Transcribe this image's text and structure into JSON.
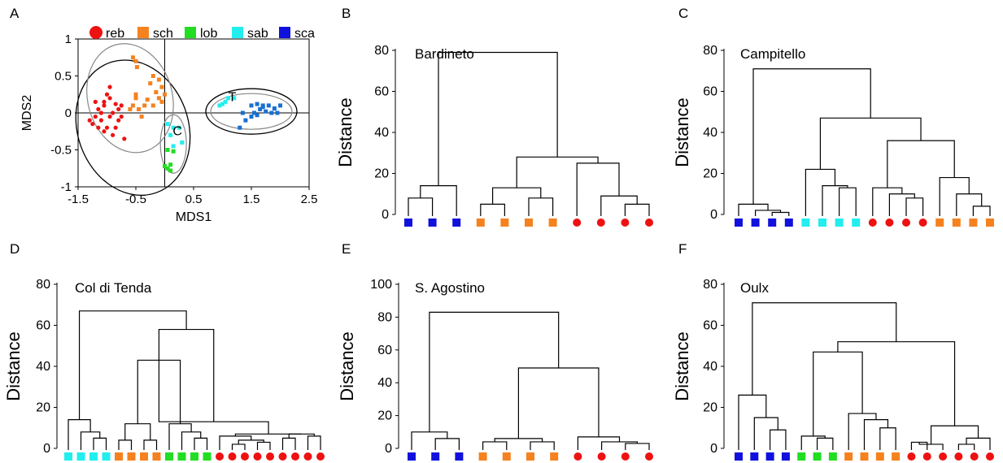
{
  "colors": {
    "reb": "#ee1111",
    "sch": "#f5821f",
    "lob": "#22dd22",
    "sab": "#22eeee",
    "sca": "#1111dd",
    "sca_scatter": "#1a6fd1"
  },
  "chart_data": [
    {
      "panel": "A",
      "type": "scatter",
      "xlabel": "MDS1",
      "ylabel": "MDS2",
      "xlim": [
        -1.5,
        2.5
      ],
      "ylim": [
        -1,
        1
      ],
      "xticks": [
        "-1.5",
        "-0.5",
        "0.5",
        "1.5",
        "2.5"
      ],
      "yticks": [
        "1",
        "0.5",
        "0",
        "-0.5",
        "-1"
      ],
      "legend": [
        {
          "key": "reb",
          "label": "reb",
          "shape": "circle"
        },
        {
          "key": "sch",
          "label": "sch",
          "shape": "square"
        },
        {
          "key": "lob",
          "label": "lob",
          "shape": "square"
        },
        {
          "key": "sab",
          "label": "sab",
          "shape": "square"
        },
        {
          "key": "sca",
          "label": "sca",
          "shape": "square"
        }
      ],
      "annotations": [
        {
          "text": "T",
          "x": 1.17,
          "y": 0.16
        },
        {
          "text": "C",
          "x": 0.22,
          "y": -0.3
        }
      ],
      "series": [
        {
          "key": "reb",
          "shape": "circle",
          "points": [
            [
              -1.15,
              0.05
            ],
            [
              -1.05,
              0.1
            ],
            [
              -1.2,
              -0.05
            ],
            [
              -0.95,
              0.2
            ],
            [
              -1.1,
              -0.1
            ],
            [
              -0.9,
              0.0
            ],
            [
              -1.0,
              -0.2
            ],
            [
              -0.8,
              -0.1
            ],
            [
              -1.25,
              -0.15
            ],
            [
              -0.95,
              0.35
            ],
            [
              -1.05,
              -0.25
            ],
            [
              -0.85,
              0.12
            ],
            [
              -1.15,
              -0.2
            ],
            [
              -0.75,
              -0.05
            ],
            [
              -1.0,
              0.25
            ],
            [
              -0.9,
              -0.3
            ],
            [
              -0.7,
              -0.35
            ],
            [
              -1.2,
              0.15
            ],
            [
              -1.1,
              0.0
            ],
            [
              -0.95,
              -0.05
            ],
            [
              -0.8,
              0.05
            ],
            [
              -1.3,
              -0.1
            ],
            [
              -0.85,
              -0.2
            ],
            [
              -1.05,
              0.15
            ],
            [
              -0.75,
              0.1
            ]
          ]
        },
        {
          "key": "sch",
          "shape": "square",
          "points": [
            [
              -0.55,
              0.75
            ],
            [
              -0.5,
              0.7
            ],
            [
              -0.48,
              0.62
            ],
            [
              -0.2,
              0.5
            ],
            [
              -0.1,
              0.45
            ],
            [
              -0.25,
              0.4
            ],
            [
              -0.05,
              0.35
            ],
            [
              -0.1,
              0.2
            ],
            [
              -0.15,
              0.28
            ],
            [
              -0.3,
              0.18
            ],
            [
              -0.5,
              0.25
            ],
            [
              -0.05,
              0.15
            ],
            [
              -0.45,
              0.05
            ],
            [
              -0.35,
              0.1
            ],
            [
              -0.55,
              0.1
            ],
            [
              -0.5,
              0.2
            ],
            [
              -0.2,
              0.1
            ],
            [
              0.0,
              0.25
            ],
            [
              -0.4,
              -0.05
            ],
            [
              -0.6,
              0.05
            ]
          ]
        },
        {
          "key": "sab",
          "shape": "square",
          "points": [
            [
              0.05,
              -0.15
            ],
            [
              0.15,
              -0.2
            ],
            [
              0.25,
              -0.2
            ],
            [
              0.1,
              -0.3
            ],
            [
              0.3,
              -0.4
            ],
            [
              0.15,
              -0.45
            ],
            [
              1.05,
              0.15
            ],
            [
              1.1,
              0.2
            ],
            [
              0.95,
              0.1
            ],
            [
              1.2,
              0.2
            ],
            [
              1.0,
              0.12
            ]
          ]
        },
        {
          "key": "lob",
          "shape": "square",
          "points": [
            [
              0.05,
              -0.5
            ],
            [
              0.1,
              -0.7
            ],
            [
              0.05,
              -0.75
            ],
            [
              0.1,
              -0.78
            ],
            [
              0.0,
              -0.72
            ],
            [
              0.15,
              -0.52
            ]
          ]
        },
        {
          "key": "sca_scatter",
          "shape": "square",
          "points": [
            [
              1.5,
              0.1
            ],
            [
              1.6,
              0.12
            ],
            [
              1.7,
              0.08
            ],
            [
              1.8,
              0.1
            ],
            [
              1.9,
              0.06
            ],
            [
              2.0,
              0.1
            ],
            [
              1.55,
              0.0
            ],
            [
              1.65,
              0.05
            ],
            [
              1.75,
              0.02
            ],
            [
              1.85,
              0.0
            ],
            [
              1.35,
              0.0
            ],
            [
              1.4,
              -0.1
            ],
            [
              1.3,
              -0.2
            ],
            [
              1.5,
              -0.05
            ],
            [
              1.95,
              0.0
            ],
            [
              1.7,
              0.1
            ],
            [
              1.6,
              -0.03
            ]
          ]
        }
      ]
    },
    {
      "panel": "B",
      "type": "dendrogram",
      "title": "Bardineto",
      "ylabel": "Distance",
      "ylim": [
        0,
        80
      ],
      "yticks": [
        "0",
        "20",
        "40",
        "60",
        "80"
      ],
      "leaves": [
        "sca",
        "sca",
        "sca",
        "sch",
        "sch",
        "sch",
        "sch",
        "reb",
        "reb",
        "reb",
        "reb"
      ],
      "merges": [
        [
          0,
          1,
          8
        ],
        [
          11,
          2,
          14
        ],
        [
          5,
          6,
          8
        ],
        [
          3,
          4,
          5
        ],
        [
          13,
          14,
          13
        ],
        [
          9,
          10,
          5
        ],
        [
          8,
          16,
          9
        ],
        [
          7,
          17,
          25
        ],
        [
          15,
          18,
          28
        ],
        [
          12,
          19,
          79
        ]
      ]
    },
    {
      "panel": "C",
      "type": "dendrogram",
      "title": "Campitello",
      "ylabel": "Distance",
      "ylim": [
        0,
        80
      ],
      "yticks": [
        "0",
        "20",
        "40",
        "60",
        "80"
      ],
      "leaves": [
        "sca",
        "sca",
        "sca",
        "sca",
        "sab",
        "sab",
        "sab",
        "sab",
        "reb",
        "reb",
        "reb",
        "reb",
        "sch",
        "sch",
        "sch",
        "sch"
      ],
      "merges": [
        [
          2,
          3,
          1
        ],
        [
          1,
          16,
          2
        ],
        [
          0,
          17,
          5
        ],
        [
          6,
          7,
          13
        ],
        [
          5,
          19,
          14
        ],
        [
          4,
          20,
          22
        ],
        [
          10,
          11,
          8
        ],
        [
          9,
          22,
          10
        ],
        [
          8,
          23,
          13
        ],
        [
          14,
          15,
          4
        ],
        [
          13,
          25,
          10
        ],
        [
          12,
          26,
          18
        ],
        [
          24,
          27,
          36
        ],
        [
          21,
          28,
          47
        ],
        [
          18,
          29,
          71
        ]
      ]
    },
    {
      "panel": "D",
      "type": "dendrogram",
      "title": "Col di Tenda",
      "ylabel": "Distance",
      "ylim": [
        0,
        80
      ],
      "yticks": [
        "0",
        "20",
        "40",
        "60",
        "80"
      ],
      "leaves": [
        "sab",
        "sab",
        "sab",
        "sab",
        "sch",
        "sch",
        "sch",
        "sch",
        "lob",
        "lob",
        "lob",
        "lob",
        "reb",
        "reb",
        "reb",
        "reb",
        "reb",
        "reb",
        "reb",
        "reb",
        "reb"
      ],
      "merges": [
        [
          2,
          3,
          5
        ],
        [
          1,
          21,
          8
        ],
        [
          0,
          22,
          14
        ],
        [
          6,
          7,
          4
        ],
        [
          4,
          5,
          4
        ],
        [
          24,
          25,
          12
        ],
        [
          10,
          11,
          5
        ],
        [
          9,
          27,
          8
        ],
        [
          8,
          28,
          12
        ],
        [
          26,
          29,
          43
        ],
        [
          13,
          14,
          2
        ],
        [
          15,
          16,
          3
        ],
        [
          31,
          32,
          4
        ],
        [
          12,
          33,
          6
        ],
        [
          17,
          18,
          5
        ],
        [
          19,
          20,
          6
        ],
        [
          35,
          36,
          7
        ],
        [
          34,
          37,
          7
        ],
        [
          38,
          30,
          13
        ],
        [
          30,
          39,
          58
        ],
        [
          23,
          40,
          67
        ]
      ]
    },
    {
      "panel": "E",
      "type": "dendrogram",
      "title": "S. Agostino",
      "ylabel": "Distance",
      "ylim": [
        0,
        100
      ],
      "yticks": [
        "0",
        "20",
        "40",
        "60",
        "80",
        "100"
      ],
      "leaves": [
        "sca",
        "sca",
        "sca",
        "sch",
        "sch",
        "sch",
        "sch",
        "reb",
        "reb",
        "reb",
        "reb"
      ],
      "merges": [
        [
          1,
          2,
          6
        ],
        [
          0,
          11,
          10
        ],
        [
          3,
          4,
          4
        ],
        [
          5,
          6,
          4
        ],
        [
          13,
          14,
          6
        ],
        [
          9,
          10,
          3
        ],
        [
          8,
          16,
          4
        ],
        [
          7,
          17,
          7
        ],
        [
          15,
          18,
          49
        ],
        [
          12,
          19,
          83
        ]
      ]
    },
    {
      "panel": "F",
      "type": "dendrogram",
      "title": "Oulx",
      "ylabel": "Distance",
      "ylim": [
        0,
        80
      ],
      "yticks": [
        "0",
        "20",
        "40",
        "60",
        "80"
      ],
      "leaves": [
        "sca",
        "sca",
        "sca",
        "sca",
        "lob",
        "lob",
        "lob",
        "sch",
        "sch",
        "sch",
        "sch",
        "reb",
        "reb",
        "reb",
        "reb",
        "reb",
        "reb"
      ],
      "merges": [
        [
          2,
          3,
          9
        ],
        [
          1,
          17,
          15
        ],
        [
          0,
          18,
          26
        ],
        [
          5,
          6,
          5
        ],
        [
          4,
          20,
          6
        ],
        [
          9,
          10,
          10
        ],
        [
          8,
          22,
          14
        ],
        [
          7,
          23,
          17
        ],
        [
          21,
          24,
          47
        ],
        [
          11,
          12,
          3
        ],
        [
          13,
          26,
          2
        ],
        [
          14,
          15,
          2
        ],
        [
          28,
          16,
          5
        ],
        [
          27,
          29,
          11
        ],
        [
          25,
          30,
          52
        ],
        [
          19,
          31,
          71
        ]
      ]
    }
  ]
}
